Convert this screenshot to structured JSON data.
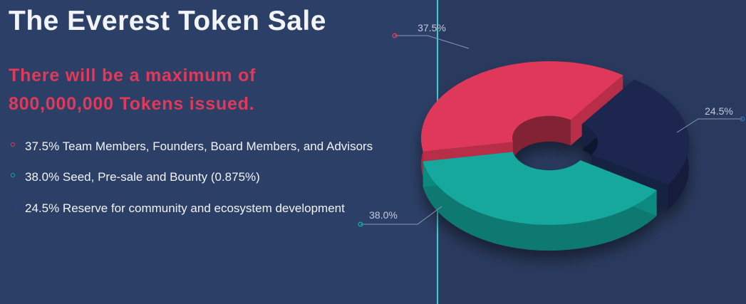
{
  "header": {
    "title": "The Everest Token Sale",
    "subtitle": "There will be a maximum of 800,000,000 Tokens issued."
  },
  "legend": {
    "items": [
      {
        "text": "37.5% Team Members, Founders, Board Members, and Advisors",
        "color": "#e0395a"
      },
      {
        "text": "38.0% Seed, Pre-sale and Bounty (0.875%)",
        "color": "#12a89c"
      },
      {
        "text": "24.5% Reserve for community and ecosystem development",
        "color": "#1c3f86"
      }
    ]
  },
  "chart_data": {
    "type": "pie",
    "style": "3d-donut",
    "categories": [
      "Team Members, Founders, Board Members, and Advisors",
      "Seed, Pre-sale and Bounty (0.875%)",
      "Reserve for community and ecosystem development"
    ],
    "values": [
      37.5,
      38.0,
      24.5
    ],
    "data_labels": [
      "37.5%",
      "38.0%",
      "24.5%"
    ],
    "colors": [
      "#e0395a",
      "#12a89c",
      "#1d2750"
    ]
  }
}
